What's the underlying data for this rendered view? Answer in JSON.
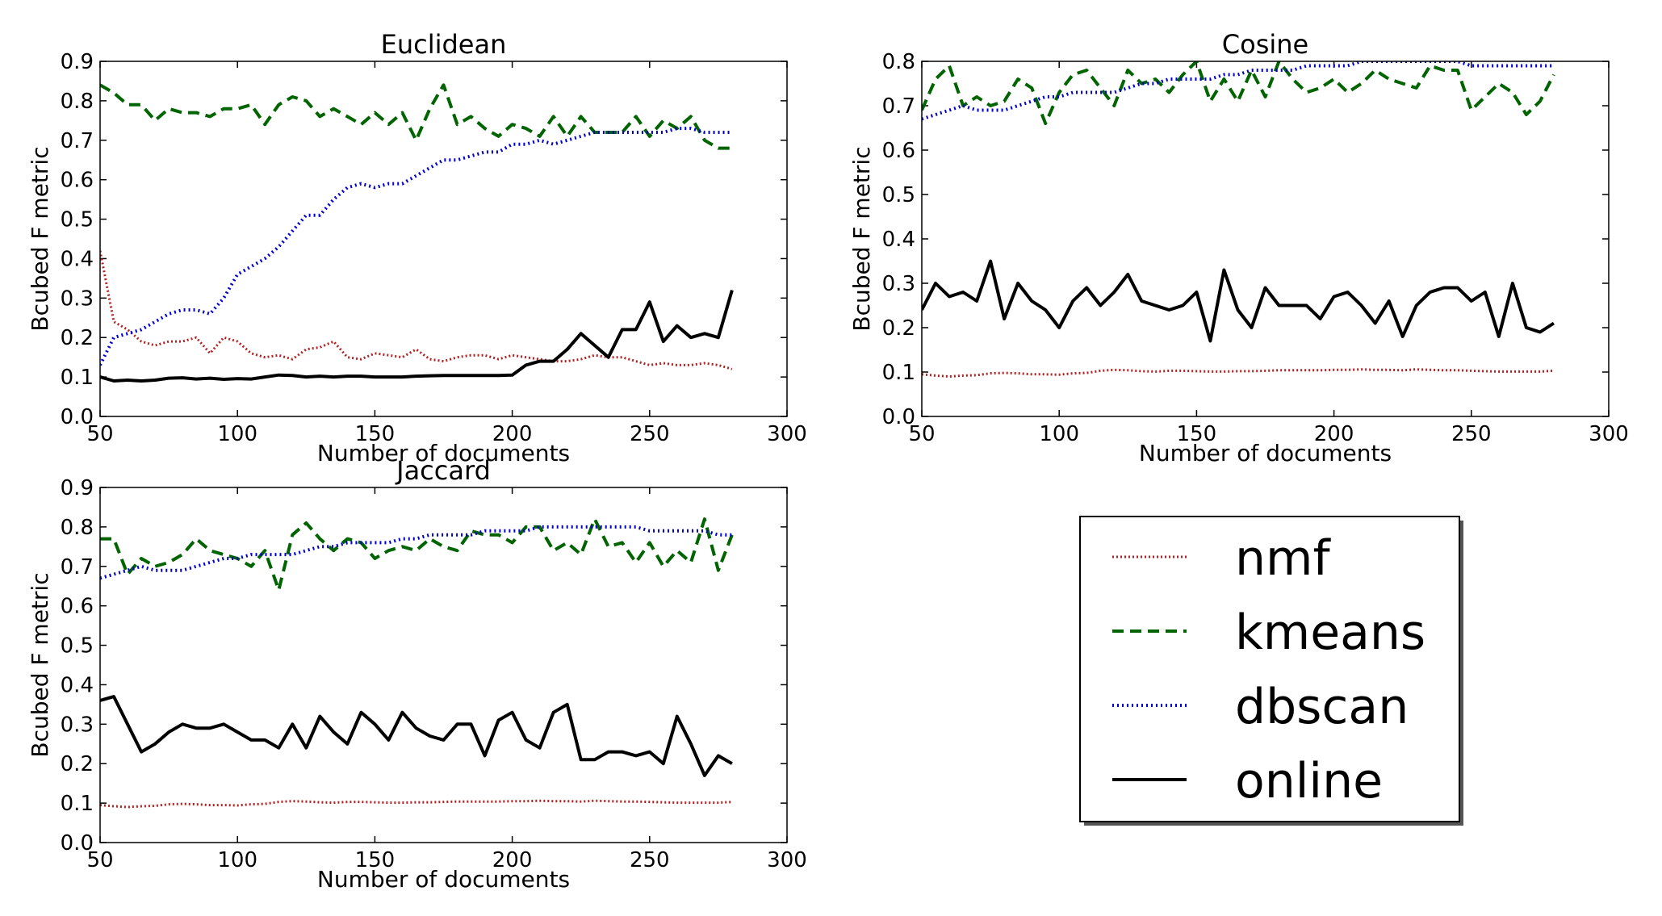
{
  "chart_data": [
    {
      "type": "line",
      "title": "Euclidean",
      "xlabel": "Number of documents",
      "ylabel": "Bcubed F metric",
      "xlim": [
        50,
        300
      ],
      "ylim": [
        0.0,
        0.9
      ],
      "xticks": [
        "50",
        "100",
        "150",
        "200",
        "250",
        "300"
      ],
      "yticks": [
        "0.0",
        "0.1",
        "0.2",
        "0.3",
        "0.4",
        "0.5",
        "0.6",
        "0.7",
        "0.8",
        "0.9"
      ],
      "grid": false,
      "x": [
        50,
        55,
        60,
        65,
        70,
        75,
        80,
        85,
        90,
        95,
        100,
        105,
        110,
        115,
        120,
        125,
        130,
        135,
        140,
        145,
        150,
        155,
        160,
        165,
        170,
        175,
        180,
        185,
        190,
        195,
        200,
        205,
        210,
        215,
        220,
        225,
        230,
        235,
        240,
        245,
        250,
        255,
        260,
        265,
        270,
        275,
        280
      ],
      "series": [
        {
          "key": "nmf",
          "values": [
            0.42,
            0.24,
            0.22,
            0.19,
            0.18,
            0.19,
            0.19,
            0.2,
            0.16,
            0.2,
            0.19,
            0.16,
            0.15,
            0.155,
            0.145,
            0.17,
            0.175,
            0.19,
            0.15,
            0.145,
            0.16,
            0.155,
            0.15,
            0.17,
            0.145,
            0.14,
            0.15,
            0.155,
            0.155,
            0.145,
            0.155,
            0.15,
            0.145,
            0.14,
            0.14,
            0.145,
            0.155,
            0.15,
            0.15,
            0.14,
            0.13,
            0.135,
            0.13,
            0.13,
            0.135,
            0.13,
            0.12
          ]
        },
        {
          "key": "kmeans",
          "values": [
            0.84,
            0.82,
            0.79,
            0.79,
            0.75,
            0.78,
            0.77,
            0.77,
            0.76,
            0.78,
            0.78,
            0.79,
            0.74,
            0.79,
            0.81,
            0.8,
            0.76,
            0.78,
            0.76,
            0.74,
            0.77,
            0.74,
            0.77,
            0.7,
            0.78,
            0.84,
            0.74,
            0.76,
            0.73,
            0.71,
            0.74,
            0.73,
            0.71,
            0.76,
            0.71,
            0.76,
            0.72,
            0.72,
            0.72,
            0.76,
            0.71,
            0.75,
            0.73,
            0.76,
            0.7,
            0.68,
            0.68
          ]
        },
        {
          "key": "dbscan",
          "values": [
            0.13,
            0.2,
            0.21,
            0.22,
            0.24,
            0.26,
            0.27,
            0.27,
            0.26,
            0.3,
            0.36,
            0.38,
            0.4,
            0.43,
            0.47,
            0.51,
            0.51,
            0.55,
            0.58,
            0.59,
            0.58,
            0.59,
            0.59,
            0.61,
            0.63,
            0.65,
            0.65,
            0.66,
            0.67,
            0.67,
            0.69,
            0.69,
            0.7,
            0.69,
            0.7,
            0.71,
            0.72,
            0.72,
            0.72,
            0.72,
            0.72,
            0.72,
            0.73,
            0.73,
            0.72,
            0.72,
            0.72
          ]
        },
        {
          "key": "online",
          "values": [
            0.1,
            0.09,
            0.092,
            0.09,
            0.092,
            0.097,
            0.098,
            0.095,
            0.097,
            0.094,
            0.096,
            0.095,
            0.1,
            0.105,
            0.104,
            0.1,
            0.102,
            0.1,
            0.102,
            0.102,
            0.1,
            0.1,
            0.1,
            0.102,
            0.103,
            0.104,
            0.104,
            0.104,
            0.104,
            0.104,
            0.105,
            0.13,
            0.14,
            0.14,
            0.17,
            0.21,
            0.18,
            0.15,
            0.22,
            0.22,
            0.29,
            0.19,
            0.23,
            0.2,
            0.21,
            0.2,
            0.32
          ]
        }
      ]
    },
    {
      "type": "line",
      "title": "Cosine",
      "xlabel": "Number of documents",
      "ylabel": "Bcubed F metric",
      "xlim": [
        50,
        300
      ],
      "ylim": [
        0.0,
        0.8
      ],
      "xticks": [
        "50",
        "100",
        "150",
        "200",
        "250",
        "300"
      ],
      "yticks": [
        "0.0",
        "0.1",
        "0.2",
        "0.3",
        "0.4",
        "0.5",
        "0.6",
        "0.7",
        "0.8"
      ],
      "grid": false,
      "x": [
        50,
        55,
        60,
        65,
        70,
        75,
        80,
        85,
        90,
        95,
        100,
        105,
        110,
        115,
        120,
        125,
        130,
        135,
        140,
        145,
        150,
        155,
        160,
        165,
        170,
        175,
        180,
        185,
        190,
        195,
        200,
        205,
        210,
        215,
        220,
        225,
        230,
        235,
        240,
        245,
        250,
        255,
        260,
        265,
        270,
        275,
        280
      ],
      "series": [
        {
          "key": "nmf",
          "values": [
            0.095,
            0.092,
            0.09,
            0.092,
            0.093,
            0.097,
            0.098,
            0.097,
            0.095,
            0.095,
            0.094,
            0.097,
            0.098,
            0.103,
            0.105,
            0.104,
            0.102,
            0.101,
            0.103,
            0.103,
            0.102,
            0.101,
            0.101,
            0.102,
            0.102,
            0.103,
            0.104,
            0.104,
            0.104,
            0.104,
            0.105,
            0.105,
            0.106,
            0.105,
            0.105,
            0.104,
            0.106,
            0.105,
            0.104,
            0.104,
            0.103,
            0.102,
            0.101,
            0.101,
            0.101,
            0.101,
            0.103
          ]
        },
        {
          "key": "kmeans",
          "values": [
            0.69,
            0.76,
            0.79,
            0.7,
            0.72,
            0.7,
            0.71,
            0.76,
            0.74,
            0.66,
            0.73,
            0.77,
            0.78,
            0.74,
            0.7,
            0.78,
            0.75,
            0.76,
            0.73,
            0.77,
            0.8,
            0.71,
            0.76,
            0.71,
            0.78,
            0.72,
            0.8,
            0.76,
            0.73,
            0.74,
            0.76,
            0.73,
            0.75,
            0.78,
            0.76,
            0.75,
            0.74,
            0.79,
            0.78,
            0.78,
            0.69,
            0.72,
            0.75,
            0.73,
            0.68,
            0.71,
            0.77
          ]
        },
        {
          "key": "dbscan",
          "values": [
            0.67,
            0.68,
            0.69,
            0.7,
            0.69,
            0.69,
            0.69,
            0.7,
            0.71,
            0.72,
            0.72,
            0.73,
            0.73,
            0.73,
            0.73,
            0.74,
            0.75,
            0.75,
            0.76,
            0.76,
            0.76,
            0.76,
            0.77,
            0.77,
            0.78,
            0.78,
            0.78,
            0.78,
            0.79,
            0.79,
            0.79,
            0.79,
            0.8,
            0.8,
            0.8,
            0.8,
            0.8,
            0.8,
            0.8,
            0.8,
            0.79,
            0.79,
            0.79,
            0.79,
            0.79,
            0.79,
            0.79
          ]
        },
        {
          "key": "online",
          "values": [
            0.24,
            0.3,
            0.27,
            0.28,
            0.26,
            0.35,
            0.22,
            0.3,
            0.26,
            0.24,
            0.2,
            0.26,
            0.29,
            0.25,
            0.28,
            0.32,
            0.26,
            0.25,
            0.24,
            0.25,
            0.28,
            0.17,
            0.33,
            0.24,
            0.2,
            0.29,
            0.25,
            0.25,
            0.25,
            0.22,
            0.27,
            0.28,
            0.25,
            0.21,
            0.26,
            0.18,
            0.25,
            0.28,
            0.29,
            0.29,
            0.26,
            0.28,
            0.18,
            0.3,
            0.2,
            0.19,
            0.21
          ]
        }
      ]
    },
    {
      "type": "line",
      "title": "Jaccard",
      "xlabel": "Number of documents",
      "ylabel": "Bcubed F metric",
      "xlim": [
        50,
        300
      ],
      "ylim": [
        0.0,
        0.9
      ],
      "xticks": [
        "50",
        "100",
        "150",
        "200",
        "250",
        "300"
      ],
      "yticks": [
        "0.0",
        "0.1",
        "0.2",
        "0.3",
        "0.4",
        "0.5",
        "0.6",
        "0.7",
        "0.8",
        "0.9"
      ],
      "grid": false,
      "x": [
        50,
        55,
        60,
        65,
        70,
        75,
        80,
        85,
        90,
        95,
        100,
        105,
        110,
        115,
        120,
        125,
        130,
        135,
        140,
        145,
        150,
        155,
        160,
        165,
        170,
        175,
        180,
        185,
        190,
        195,
        200,
        205,
        210,
        215,
        220,
        225,
        230,
        235,
        240,
        245,
        250,
        255,
        260,
        265,
        270,
        275,
        280
      ],
      "series": [
        {
          "key": "nmf",
          "values": [
            0.095,
            0.092,
            0.09,
            0.092,
            0.093,
            0.097,
            0.098,
            0.097,
            0.095,
            0.095,
            0.094,
            0.097,
            0.098,
            0.103,
            0.105,
            0.104,
            0.102,
            0.101,
            0.103,
            0.103,
            0.102,
            0.101,
            0.101,
            0.102,
            0.102,
            0.103,
            0.104,
            0.104,
            0.104,
            0.104,
            0.105,
            0.105,
            0.106,
            0.105,
            0.105,
            0.104,
            0.106,
            0.105,
            0.104,
            0.104,
            0.103,
            0.102,
            0.101,
            0.101,
            0.101,
            0.101,
            0.103
          ]
        },
        {
          "key": "kmeans",
          "values": [
            0.77,
            0.77,
            0.68,
            0.72,
            0.7,
            0.71,
            0.73,
            0.77,
            0.74,
            0.73,
            0.72,
            0.7,
            0.74,
            0.64,
            0.78,
            0.81,
            0.77,
            0.74,
            0.77,
            0.76,
            0.72,
            0.74,
            0.75,
            0.74,
            0.77,
            0.75,
            0.74,
            0.79,
            0.78,
            0.78,
            0.76,
            0.8,
            0.8,
            0.74,
            0.76,
            0.73,
            0.82,
            0.75,
            0.76,
            0.71,
            0.76,
            0.7,
            0.74,
            0.71,
            0.82,
            0.69,
            0.78
          ]
        },
        {
          "key": "dbscan",
          "values": [
            0.67,
            0.68,
            0.69,
            0.7,
            0.69,
            0.69,
            0.69,
            0.7,
            0.71,
            0.72,
            0.72,
            0.73,
            0.73,
            0.73,
            0.73,
            0.74,
            0.75,
            0.75,
            0.76,
            0.76,
            0.76,
            0.76,
            0.77,
            0.77,
            0.78,
            0.78,
            0.78,
            0.78,
            0.79,
            0.79,
            0.79,
            0.79,
            0.8,
            0.8,
            0.8,
            0.8,
            0.8,
            0.8,
            0.8,
            0.8,
            0.79,
            0.79,
            0.79,
            0.79,
            0.79,
            0.78,
            0.78
          ]
        },
        {
          "key": "online",
          "values": [
            0.36,
            0.37,
            0.3,
            0.23,
            0.25,
            0.28,
            0.3,
            0.29,
            0.29,
            0.3,
            0.28,
            0.26,
            0.26,
            0.24,
            0.3,
            0.24,
            0.32,
            0.28,
            0.25,
            0.33,
            0.3,
            0.26,
            0.33,
            0.29,
            0.27,
            0.26,
            0.3,
            0.3,
            0.22,
            0.31,
            0.33,
            0.26,
            0.24,
            0.33,
            0.35,
            0.21,
            0.21,
            0.23,
            0.23,
            0.22,
            0.23,
            0.2,
            0.32,
            0.25,
            0.17,
            0.22,
            0.2
          ]
        }
      ]
    }
  ],
  "legend": {
    "placement": "lower-right",
    "entries": [
      {
        "key": "nmf",
        "label": "nmf",
        "color": "#b22222",
        "style": "dotted"
      },
      {
        "key": "kmeans",
        "label": "kmeans",
        "color": "#006400",
        "style": "dashed"
      },
      {
        "key": "dbscan",
        "label": "dbscan",
        "color": "#0000cd",
        "style": "dash-dot"
      },
      {
        "key": "online",
        "label": "online",
        "color": "#000000",
        "style": "solid"
      }
    ]
  }
}
